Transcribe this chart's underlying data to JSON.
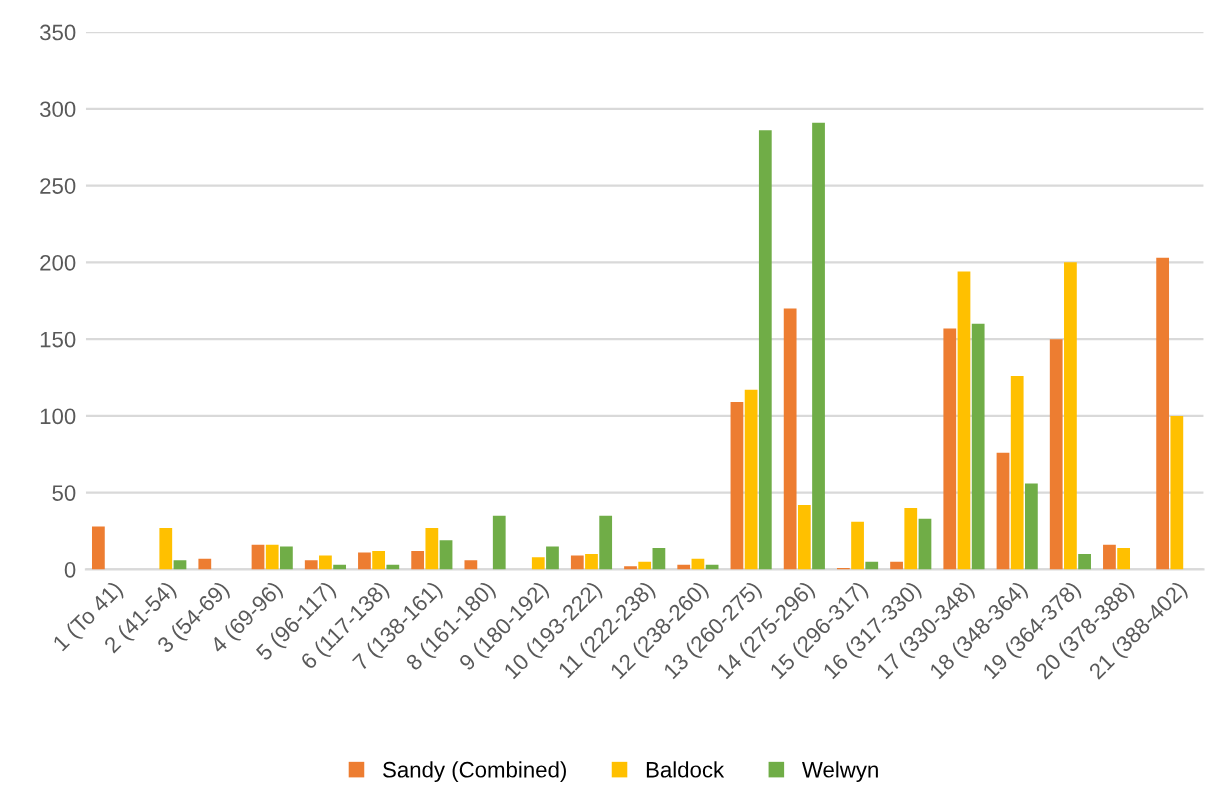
{
  "chart_data": {
    "type": "bar",
    "categories": [
      "1 (To 41)",
      "2 (41-54)",
      "3 (54-69)",
      "4 (69-96)",
      "5 (96-117)",
      "6 (117-138)",
      "7 (138-161)",
      "8 (161-180)",
      "9 (180-192)",
      "10 (193-222)",
      "11 (222-238)",
      "12 (238-260)",
      "13 (260-275)",
      "14 (275-296)",
      "15 (296-317)",
      "16 (317-330)",
      "17 (330-348)",
      "18 (348-364)",
      "19 (364-378)",
      "20 (378-388)",
      "21 (388-402)"
    ],
    "series": [
      {
        "name": "Sandy (Combined)",
        "color": "#ed7d31",
        "values": [
          28,
          0,
          7,
          16,
          6,
          11,
          12,
          6,
          0,
          9,
          2,
          3,
          109,
          170,
          1,
          5,
          157,
          76,
          150,
          16,
          203
        ]
      },
      {
        "name": "Baldock",
        "color": "#ffc000",
        "values": [
          0,
          27,
          0,
          16,
          9,
          12,
          27,
          0,
          8,
          10,
          5,
          7,
          117,
          42,
          31,
          40,
          194,
          126,
          200,
          14,
          100
        ]
      },
      {
        "name": "Welwyn",
        "color": "#70ad47",
        "values": [
          0,
          6,
          0,
          15,
          3,
          3,
          19,
          35,
          15,
          35,
          14,
          3,
          286,
          291,
          5,
          33,
          160,
          56,
          10,
          0,
          0
        ]
      }
    ],
    "ylim": [
      0,
      350
    ],
    "yticks": [
      0,
      50,
      100,
      150,
      200,
      250,
      300,
      350
    ],
    "grid": "y",
    "legend": "bottom"
  }
}
